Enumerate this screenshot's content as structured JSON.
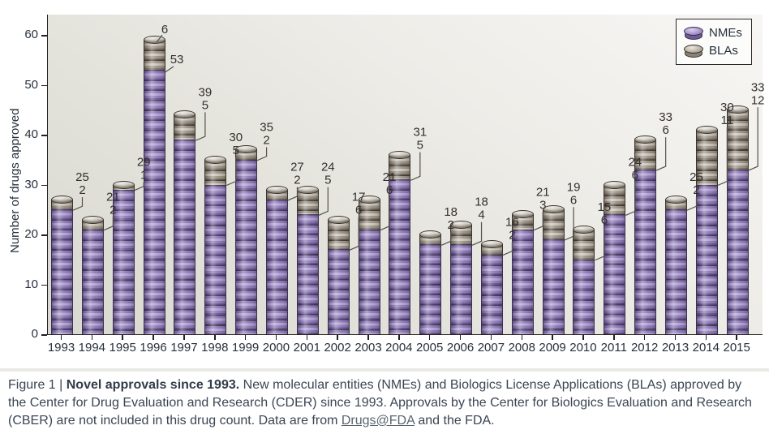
{
  "figure": {
    "label": "Figure 1",
    "separator": " | ",
    "title_bold": "Novel approvals since 1993.",
    "caption_part1": " New molecular entities (NMEs) and Biologics License Applications (BLAs) approved by the Center for Drug Evaluation and Research (CDER) since 1993. Approvals by the Center for Biologics Evaluation and Research (CBER) are not included in this drug count. Data are from ",
    "link_text": "Drugs@FDA",
    "caption_part2": " and the FDA."
  },
  "chart_data": {
    "type": "bar",
    "stacked": true,
    "title": "",
    "xlabel": "",
    "ylabel": "Number of drugs approved",
    "ylim": [
      0,
      60
    ],
    "yticks": [
      0,
      10,
      20,
      30,
      40,
      50,
      60
    ],
    "grid": false,
    "legend_position": "top-right",
    "legend": [
      {
        "label": "NMEs",
        "color": "#8f7cb8"
      },
      {
        "label": "BLAs",
        "color": "#9d9489"
      }
    ],
    "categories": [
      "1993",
      "1994",
      "1995",
      "1996",
      "1997",
      "1998",
      "1999",
      "2000",
      "2001",
      "2002",
      "2003",
      "2004",
      "2005",
      "2006",
      "2007",
      "2008",
      "2009",
      "2010",
      "2011",
      "2012",
      "2013",
      "2014",
      "2015"
    ],
    "series": [
      {
        "name": "NMEs",
        "values": [
          25,
          21,
          29,
          53,
          39,
          30,
          35,
          27,
          24,
          17,
          21,
          31,
          18,
          18,
          16,
          21,
          19,
          15,
          24,
          33,
          25,
          30,
          33
        ]
      },
      {
        "name": "BLAs",
        "values": [
          2,
          2,
          1,
          6,
          5,
          5,
          2,
          2,
          5,
          6,
          6,
          5,
          2,
          4,
          2,
          3,
          6,
          6,
          6,
          6,
          2,
          11,
          12
        ]
      }
    ],
    "annotation_note": "Each bar is annotated with its NME count (top number) and BLA count (bottom number)"
  }
}
